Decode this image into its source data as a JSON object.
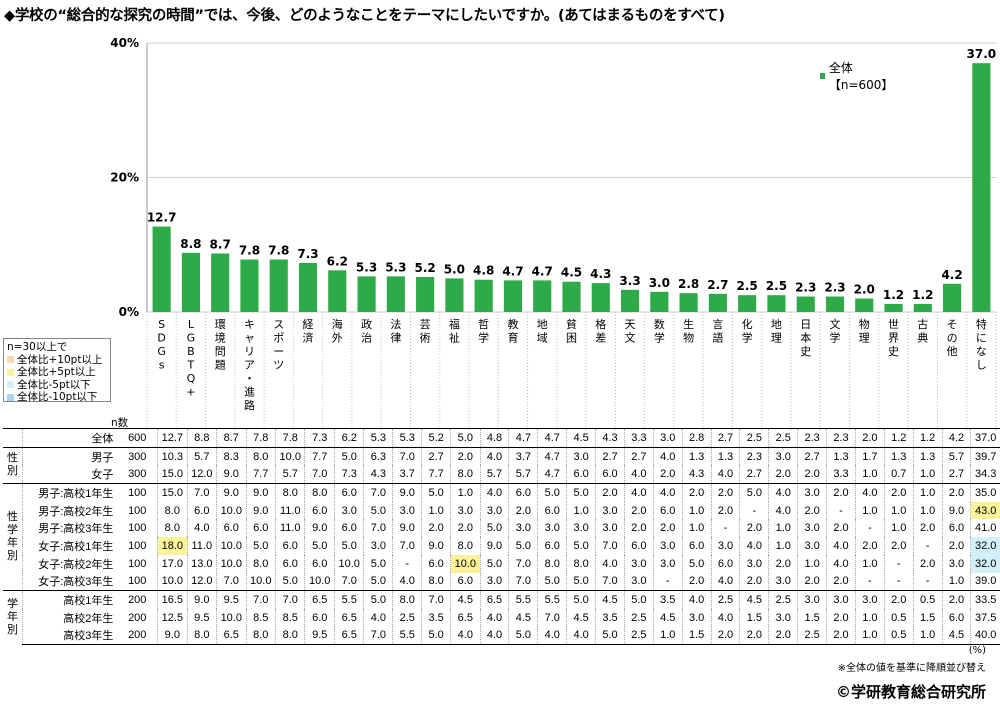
{
  "title": "◆学校の“総合的な探究の時間”では、今後、どのようなことをテーマにしたいですか。(あてはまるものをすべて)",
  "legend": {
    "label": "全体【n=600】",
    "color": "#2eaa48"
  },
  "key": {
    "title": "n=30以上で",
    "items": [
      {
        "label": "全体比+10pt以上",
        "color": "#fbd9b0"
      },
      {
        "label": "全体比+5pt以上",
        "color": "#fbf39a"
      },
      {
        "label": "全体比-5pt以下",
        "color": "#d3eff7"
      },
      {
        "label": "全体比-10pt以下",
        "color": "#a8d4ec"
      }
    ]
  },
  "n_header": "n数",
  "unit": "(%)",
  "note": "※全体の値を基準に降順並び替え",
  "copyright": "©学研教育総合研究所",
  "chart_data": {
    "type": "bar",
    "categories": [
      "SDGs",
      "LGBTQ+",
      "環境問題",
      "キャリア・進路",
      "スポーツ",
      "経済",
      "海外",
      "政治",
      "法律",
      "芸術",
      "福祉",
      "哲学",
      "教育",
      "地域",
      "貧困",
      "格差",
      "天文",
      "数学",
      "生物",
      "言語",
      "化学",
      "地理",
      "日本史",
      "文学",
      "物理",
      "世界史",
      "古典",
      "その他",
      "特になし"
    ],
    "series": [
      {
        "name": "全体【n=600】",
        "values": [
          12.7,
          8.8,
          8.7,
          7.8,
          7.8,
          7.3,
          6.2,
          5.3,
          5.3,
          5.2,
          5.0,
          4.8,
          4.7,
          4.7,
          4.5,
          4.3,
          3.3,
          3.0,
          2.8,
          2.7,
          2.5,
          2.5,
          2.3,
          2.3,
          2.0,
          1.2,
          1.2,
          4.2,
          37.0
        ]
      }
    ],
    "value_labels": [
      "12.7",
      "8.8",
      "8.7",
      "7.8",
      "7.8",
      "7.3",
      "6.2",
      "5.3",
      "5.3",
      "5.2",
      "5.0",
      "4.8",
      "4.7",
      "4.7",
      "4.5",
      "4.3",
      "3.3",
      "3.0",
      "2.8",
      "2.7",
      "2.5",
      "2.5",
      "2.3",
      "2.3",
      "2.0",
      "1.2",
      "1.2",
      "4.2",
      "37.0"
    ],
    "ylim": [
      0,
      40
    ],
    "yticks": [
      "0%",
      "20%",
      "40%"
    ],
    "grid": true,
    "legend_position": "top-right",
    "table": {
      "groups": [
        {
          "label": "",
          "rows": [
            0
          ]
        },
        {
          "label": "性別",
          "rows": [
            1,
            2
          ]
        },
        {
          "label": "性学年別",
          "rows": [
            3,
            4,
            5,
            6,
            7,
            8
          ]
        },
        {
          "label": "学年別",
          "rows": [
            9,
            10,
            11
          ]
        }
      ],
      "rows": [
        {
          "label": "全体",
          "n": "600",
          "values": [
            "12.7",
            "8.8",
            "8.7",
            "7.8",
            "7.8",
            "7.3",
            "6.2",
            "5.3",
            "5.3",
            "5.2",
            "5.0",
            "4.8",
            "4.7",
            "4.7",
            "4.5",
            "4.3",
            "3.3",
            "3.0",
            "2.8",
            "2.7",
            "2.5",
            "2.5",
            "2.3",
            "2.3",
            "2.0",
            "1.2",
            "1.2",
            "4.2",
            "37.0"
          ]
        },
        {
          "label": "男子",
          "n": "300",
          "values": [
            "10.3",
            "5.7",
            "8.3",
            "8.0",
            "10.0",
            "7.7",
            "5.0",
            "6.3",
            "7.0",
            "2.7",
            "2.0",
            "4.0",
            "3.7",
            "4.7",
            "3.0",
            "2.7",
            "2.7",
            "4.0",
            "1.3",
            "1.3",
            "2.3",
            "3.0",
            "2.7",
            "1.3",
            "1.7",
            "1.3",
            "1.3",
            "5.7",
            "39.7"
          ]
        },
        {
          "label": "女子",
          "n": "300",
          "values": [
            "15.0",
            "12.0",
            "9.0",
            "7.7",
            "5.7",
            "7.0",
            "7.3",
            "4.3",
            "3.7",
            "7.7",
            "8.0",
            "5.7",
            "5.7",
            "4.7",
            "6.0",
            "6.0",
            "4.0",
            "2.0",
            "4.3",
            "4.0",
            "2.7",
            "2.0",
            "2.0",
            "3.3",
            "1.0",
            "0.7",
            "1.0",
            "2.7",
            "34.3"
          ]
        },
        {
          "label": "男子:高校1年生",
          "n": "100",
          "values": [
            "15.0",
            "7.0",
            "9.0",
            "9.0",
            "8.0",
            "8.0",
            "6.0",
            "7.0",
            "9.0",
            "5.0",
            "1.0",
            "4.0",
            "6.0",
            "5.0",
            "5.0",
            "2.0",
            "4.0",
            "4.0",
            "2.0",
            "2.0",
            "5.0",
            "4.0",
            "3.0",
            "2.0",
            "4.0",
            "2.0",
            "1.0",
            "2.0",
            "35.0"
          ]
        },
        {
          "label": "男子:高校2年生",
          "n": "100",
          "values": [
            "8.0",
            "6.0",
            "10.0",
            "9.0",
            "11.0",
            "6.0",
            "3.0",
            "5.0",
            "3.0",
            "1.0",
            "3.0",
            "3.0",
            "2.0",
            "6.0",
            "1.0",
            "3.0",
            "2.0",
            "6.0",
            "1.0",
            "2.0",
            "-",
            "4.0",
            "2.0",
            "-",
            "1.0",
            "1.0",
            "1.0",
            "9.0",
            "43.0"
          ]
        },
        {
          "label": "男子:高校3年生",
          "n": "100",
          "values": [
            "8.0",
            "4.0",
            "6.0",
            "6.0",
            "11.0",
            "9.0",
            "6.0",
            "7.0",
            "9.0",
            "2.0",
            "2.0",
            "5.0",
            "3.0",
            "3.0",
            "3.0",
            "3.0",
            "2.0",
            "2.0",
            "1.0",
            "-",
            "2.0",
            "1.0",
            "3.0",
            "2.0",
            "-",
            "1.0",
            "2.0",
            "6.0",
            "41.0"
          ]
        },
        {
          "label": "女子:高校1年生",
          "n": "100",
          "values": [
            "18.0",
            "11.0",
            "10.0",
            "5.0",
            "6.0",
            "5.0",
            "5.0",
            "3.0",
            "7.0",
            "9.0",
            "8.0",
            "9.0",
            "5.0",
            "6.0",
            "5.0",
            "7.0",
            "6.0",
            "3.0",
            "6.0",
            "3.0",
            "4.0",
            "1.0",
            "3.0",
            "4.0",
            "2.0",
            "2.0",
            "-",
            "2.0",
            "32.0"
          ]
        },
        {
          "label": "女子:高校2年生",
          "n": "100",
          "values": [
            "17.0",
            "13.0",
            "10.0",
            "8.0",
            "6.0",
            "6.0",
            "10.0",
            "5.0",
            "-",
            "6.0",
            "10.0",
            "5.0",
            "7.0",
            "8.0",
            "8.0",
            "4.0",
            "3.0",
            "3.0",
            "5.0",
            "6.0",
            "3.0",
            "2.0",
            "1.0",
            "4.0",
            "1.0",
            "-",
            "2.0",
            "3.0",
            "32.0"
          ]
        },
        {
          "label": "女子:高校3年生",
          "n": "100",
          "values": [
            "10.0",
            "12.0",
            "7.0",
            "10.0",
            "5.0",
            "10.0",
            "7.0",
            "5.0",
            "4.0",
            "8.0",
            "6.0",
            "3.0",
            "7.0",
            "5.0",
            "5.0",
            "7.0",
            "3.0",
            "-",
            "2.0",
            "4.0",
            "2.0",
            "3.0",
            "2.0",
            "2.0",
            "-",
            "-",
            "-",
            "1.0",
            "39.0"
          ]
        },
        {
          "label": "高校1年生",
          "n": "200",
          "values": [
            "16.5",
            "9.0",
            "9.5",
            "7.0",
            "7.0",
            "6.5",
            "5.5",
            "5.0",
            "8.0",
            "7.0",
            "4.5",
            "6.5",
            "5.5",
            "5.5",
            "5.0",
            "4.5",
            "5.0",
            "3.5",
            "4.0",
            "2.5",
            "4.5",
            "2.5",
            "3.0",
            "3.0",
            "3.0",
            "2.0",
            "0.5",
            "2.0",
            "33.5"
          ]
        },
        {
          "label": "高校2年生",
          "n": "200",
          "values": [
            "12.5",
            "9.5",
            "10.0",
            "8.5",
            "8.5",
            "6.0",
            "6.5",
            "4.0",
            "2.5",
            "3.5",
            "6.5",
            "4.0",
            "4.5",
            "7.0",
            "4.5",
            "3.5",
            "2.5",
            "4.5",
            "3.0",
            "4.0",
            "1.5",
            "3.0",
            "1.5",
            "2.0",
            "1.0",
            "0.5",
            "1.5",
            "6.0",
            "37.5"
          ]
        },
        {
          "label": "高校3年生",
          "n": "200",
          "values": [
            "9.0",
            "8.0",
            "6.5",
            "8.0",
            "8.0",
            "9.5",
            "6.5",
            "7.0",
            "5.5",
            "5.0",
            "4.0",
            "4.0",
            "5.0",
            "4.0",
            "4.0",
            "5.0",
            "2.5",
            "1.0",
            "1.5",
            "2.0",
            "2.0",
            "2.0",
            "2.5",
            "2.0",
            "1.0",
            "0.5",
            "1.0",
            "4.5",
            "40.0"
          ]
        }
      ],
      "highlights": [
        {
          "row": 4,
          "col": 28,
          "level": "+5pt"
        },
        {
          "row": 6,
          "col": 0,
          "level": "+5pt"
        },
        {
          "row": 6,
          "col": 28,
          "level": "-5pt"
        },
        {
          "row": 7,
          "col": 10,
          "level": "+5pt"
        },
        {
          "row": 7,
          "col": 28,
          "level": "-5pt"
        }
      ]
    }
  }
}
